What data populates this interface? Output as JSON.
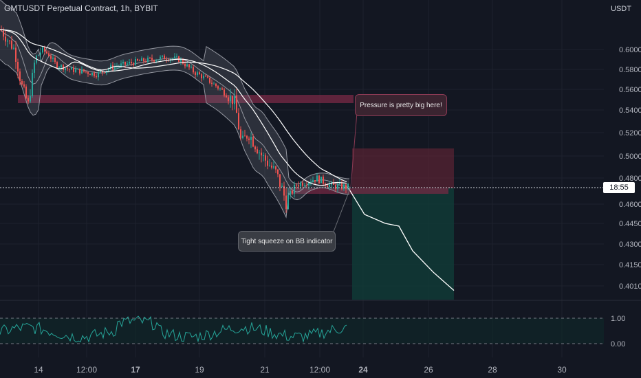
{
  "header": {
    "title": "GMTUSDT Perpetual Contract, 1h, BYBIT",
    "currency": "USDT"
  },
  "price_axis": {
    "labels": [
      "0.6000",
      "0.5800",
      "0.5600",
      "0.5400",
      "0.5200",
      "0.5000",
      "0.4800",
      "0.4600",
      "0.4450",
      "0.4300",
      "0.4150",
      "0.4010"
    ],
    "current_label": "18:55"
  },
  "time_axis": {
    "labels": [
      "14",
      "12:00",
      "17",
      "19",
      "21",
      "12:00",
      "24",
      "26",
      "28",
      "30"
    ],
    "bold": [
      "17",
      "24"
    ]
  },
  "annotations": {
    "pressure": "Pressure is pretty big here!",
    "squeeze": "Tight squeeze on BB indicator"
  },
  "oscillator": {
    "levels": [
      "1.00",
      "0.00"
    ]
  },
  "colors": {
    "background": "#131722",
    "up": "#26a69a",
    "down": "#ef5350",
    "ma": "#ffffff",
    "resistance_zone": "#7a2a45",
    "stop_zone": "#5b2433",
    "target_zone": "#103a36"
  },
  "chart_data": {
    "type": "candlestick",
    "title": "GMTUSDT Perpetual Contract, 1h, BYBIT",
    "xlabel": "",
    "ylabel": "",
    "ylim": [
      0.395,
      0.635
    ],
    "x_ticks": [
      "14",
      "12:00",
      "17",
      "19",
      "21",
      "12:00",
      "24",
      "26",
      "28",
      "30"
    ],
    "y_ticks": [
      0.6,
      0.58,
      0.56,
      0.54,
      0.52,
      0.5,
      0.48,
      0.46,
      0.445,
      0.43,
      0.415,
      0.401
    ],
    "price_path": [
      [
        0,
        0.62
      ],
      [
        10,
        0.61
      ],
      [
        20,
        0.6
      ],
      [
        30,
        0.565
      ],
      [
        40,
        0.545
      ],
      [
        50,
        0.59
      ],
      [
        60,
        0.6
      ],
      [
        70,
        0.595
      ],
      [
        80,
        0.585
      ],
      [
        100,
        0.58
      ],
      [
        120,
        0.578
      ],
      [
        140,
        0.575
      ],
      [
        160,
        0.582
      ],
      [
        180,
        0.585
      ],
      [
        200,
        0.588
      ],
      [
        220,
        0.59
      ],
      [
        240,
        0.592
      ],
      [
        260,
        0.59
      ],
      [
        280,
        0.578
      ],
      [
        300,
        0.57
      ],
      [
        320,
        0.56
      ],
      [
        340,
        0.548
      ],
      [
        350,
        0.51
      ],
      [
        360,
        0.52
      ],
      [
        380,
        0.5
      ],
      [
        400,
        0.485
      ],
      [
        415,
        0.462
      ],
      [
        430,
        0.475
      ],
      [
        460,
        0.48
      ],
      [
        480,
        0.474
      ],
      [
        507,
        0.473
      ]
    ],
    "resistance_zone": {
      "from": 0.554,
      "to": 0.551
    },
    "trade": {
      "entry": 0.473,
      "stop": 0.505,
      "target": 0.392
    },
    "projection": [
      [
        507,
        0.472
      ],
      [
        530,
        0.452
      ],
      [
        560,
        0.445
      ],
      [
        580,
        0.443
      ],
      [
        600,
        0.425
      ],
      [
        630,
        0.41
      ],
      [
        660,
        0.398
      ]
    ],
    "current_price_time": "18:55",
    "oscillator_levels": [
      1.0,
      0.0
    ]
  }
}
